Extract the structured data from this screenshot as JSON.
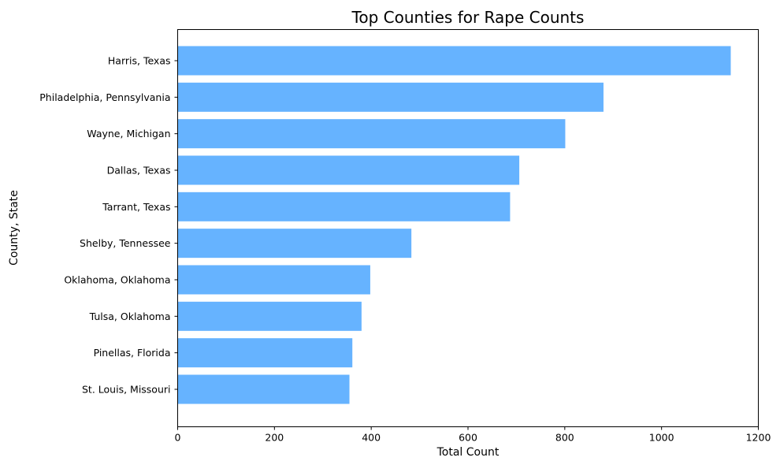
{
  "chart_data": {
    "type": "bar",
    "orientation": "horizontal",
    "title": "Top Counties for Rape Counts",
    "xlabel": "Total Count",
    "ylabel": "County, State",
    "categories": [
      "Harris, Texas",
      "Philadelphia, Pennsylvania",
      "Wayne, Michigan",
      "Dallas, Texas",
      "Tarrant, Texas",
      "Shelby, Tennessee",
      "Oklahoma, Oklahoma",
      "Tulsa, Oklahoma",
      "Pinellas, Florida",
      "St. Louis, Missouri"
    ],
    "values": [
      1143,
      880,
      801,
      706,
      687,
      483,
      398,
      380,
      361,
      355
    ],
    "xlim": [
      0,
      1200
    ],
    "xticks": [
      0,
      200,
      400,
      600,
      800,
      1000,
      1200
    ],
    "grid": false,
    "bar_color": "#66b3ff"
  }
}
